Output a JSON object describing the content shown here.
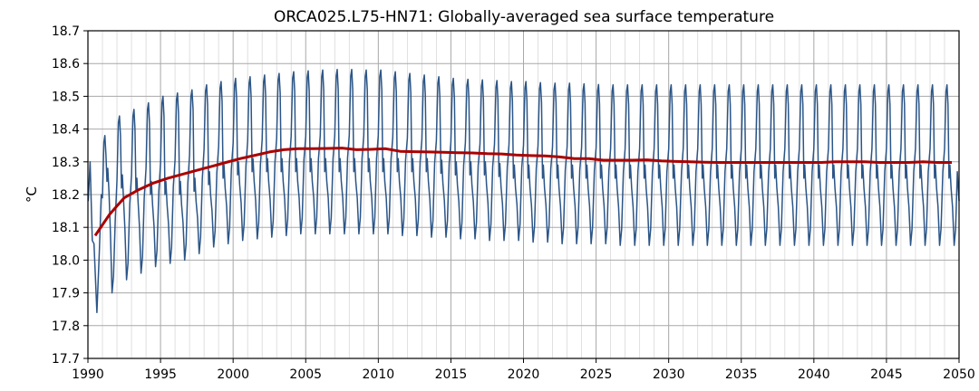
{
  "chart_data": {
    "type": "line",
    "title": "ORCA025.L75-HN71: Globally-averaged sea surface temperature",
    "xlabel": "",
    "ylabel": "°C",
    "xlim": [
      1990,
      2050
    ],
    "ylim": [
      17.7,
      18.7
    ],
    "x_ticks": [
      1990,
      1995,
      2000,
      2005,
      2010,
      2015,
      2020,
      2025,
      2030,
      2035,
      2040,
      2045,
      2050
    ],
    "y_ticks": [
      17.7,
      17.8,
      17.9,
      18.0,
      18.1,
      18.2,
      18.3,
      18.4,
      18.5,
      18.6,
      18.7
    ],
    "grid": true,
    "minor_grid_x_step_years": 1,
    "legend": "none",
    "series": [
      {
        "style": "monthly",
        "color": "#2b5587",
        "annual_cycle": {
          "years": [
            1990,
            1991,
            1992,
            1993,
            1994,
            1995,
            1996,
            1997,
            1998,
            1999,
            2000,
            2001,
            2002,
            2003,
            2004,
            2005,
            2006,
            2007,
            2008,
            2009,
            2010,
            2011,
            2012,
            2013,
            2014,
            2015,
            2016,
            2017,
            2018,
            2019,
            2020,
            2021,
            2022,
            2023,
            2024,
            2025,
            2026,
            2027,
            2028,
            2029,
            2030,
            2031,
            2032,
            2033,
            2034,
            2035,
            2036,
            2037,
            2038,
            2039,
            2040,
            2041,
            2042,
            2043,
            2044,
            2045,
            2046,
            2047,
            2048,
            2049
          ],
          "peak_max": [
            18.3,
            18.38,
            18.44,
            18.46,
            18.48,
            18.5,
            18.51,
            18.52,
            18.535,
            18.545,
            18.555,
            18.56,
            18.565,
            18.57,
            18.575,
            18.578,
            18.58,
            18.582,
            18.582,
            18.58,
            18.58,
            18.575,
            18.57,
            18.565,
            18.56,
            18.555,
            18.552,
            18.55,
            18.548,
            18.545,
            18.545,
            18.542,
            18.54,
            18.54,
            18.538,
            18.536,
            18.535,
            18.535,
            18.535,
            18.535,
            18.535,
            18.535,
            18.535,
            18.535,
            18.535,
            18.535,
            18.535,
            18.535,
            18.535,
            18.535,
            18.535,
            18.535,
            18.535,
            18.535,
            18.535,
            18.535,
            18.535,
            18.535,
            18.535,
            18.535
          ],
          "trough_min": [
            17.84,
            17.9,
            17.94,
            17.96,
            17.98,
            17.99,
            18.0,
            18.02,
            18.04,
            18.05,
            18.06,
            18.065,
            18.07,
            18.075,
            18.08,
            18.08,
            18.08,
            18.08,
            18.08,
            18.08,
            18.08,
            18.075,
            18.075,
            18.07,
            18.07,
            18.065,
            18.065,
            18.06,
            18.06,
            18.06,
            18.055,
            18.055,
            18.05,
            18.05,
            18.05,
            18.05,
            18.045,
            18.045,
            18.045,
            18.045,
            18.045,
            18.045,
            18.045,
            18.045,
            18.045,
            18.045,
            18.045,
            18.045,
            18.045,
            18.045,
            18.045,
            18.045,
            18.045,
            18.045,
            18.045,
            18.045,
            18.045,
            18.045,
            18.045,
            18.045
          ],
          "secondary_peak": [
            18.25,
            18.27,
            18.25,
            18.24,
            18.23,
            18.23,
            18.23,
            18.24,
            18.26,
            18.28,
            18.29,
            18.3,
            18.3,
            18.3,
            18.3,
            18.3,
            18.3,
            18.3,
            18.3,
            18.3,
            18.3,
            18.3,
            18.3,
            18.3,
            18.295,
            18.29,
            18.29,
            18.29,
            18.285,
            18.28,
            18.28,
            18.28,
            18.28,
            18.28,
            18.28,
            18.28,
            18.28,
            18.28,
            18.28,
            18.28,
            18.28,
            18.28,
            18.28,
            18.28,
            18.28,
            18.28,
            18.28,
            18.28,
            18.28,
            18.28,
            18.28,
            18.28,
            18.28,
            18.28,
            18.28,
            18.28,
            18.28,
            18.28,
            18.28,
            18.28
          ],
          "end_value": 18.18
        }
      },
      {
        "style": "annual_mean",
        "color": "#aa0000",
        "x": [
          1990.5,
          1991.5,
          1992.5,
          1993.5,
          1994.5,
          1995.5,
          1996.5,
          1997.5,
          1998.5,
          1999.5,
          2000.5,
          2001.5,
          2002.5,
          2003.5,
          2004.5,
          2005.5,
          2006.5,
          2007.5,
          2008.5,
          2009.5,
          2010.5,
          2011.5,
          2012.5,
          2013.5,
          2014.5,
          2015.5,
          2016.5,
          2017.5,
          2018.5,
          2019.5,
          2020.5,
          2021.5,
          2022.5,
          2023.5,
          2024.5,
          2025.5,
          2026.5,
          2027.5,
          2028.5,
          2029.5,
          2030.5,
          2031.5,
          2032.5,
          2033.5,
          2034.5,
          2035.5,
          2036.5,
          2037.5,
          2038.5,
          2039.5,
          2040.5,
          2041.5,
          2042.5,
          2043.5,
          2044.5,
          2045.5,
          2046.5,
          2047.5,
          2048.5,
          2049.5
        ],
        "y": [
          18.075,
          18.14,
          18.19,
          18.215,
          18.235,
          18.25,
          18.262,
          18.274,
          18.286,
          18.298,
          18.31,
          18.32,
          18.33,
          18.337,
          18.34,
          18.34,
          18.341,
          18.342,
          18.337,
          18.338,
          18.34,
          18.332,
          18.331,
          18.33,
          18.329,
          18.328,
          18.327,
          18.325,
          18.324,
          18.321,
          18.319,
          18.318,
          18.315,
          18.31,
          18.31,
          18.305,
          18.305,
          18.305,
          18.306,
          18.303,
          18.301,
          18.3,
          18.299,
          18.298,
          18.298,
          18.298,
          18.298,
          18.298,
          18.298,
          18.298,
          18.298,
          18.3,
          18.3,
          18.3,
          18.298,
          18.298,
          18.298,
          18.3,
          18.298,
          18.298
        ]
      }
    ]
  }
}
